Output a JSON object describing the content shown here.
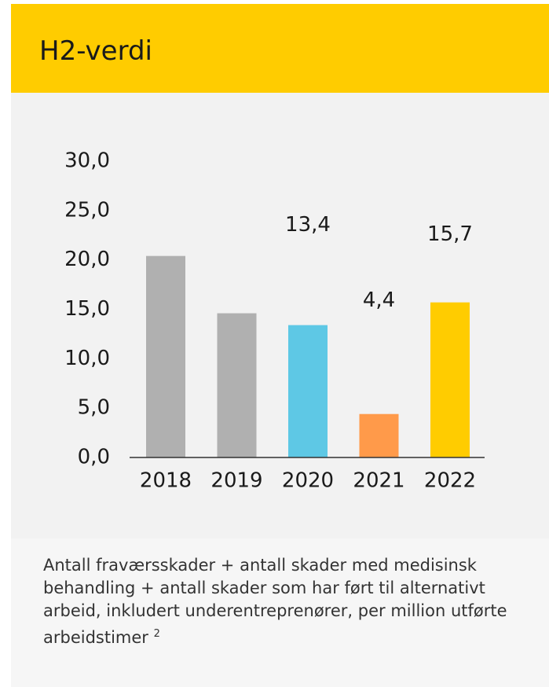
{
  "chart_data": {
    "type": "bar",
    "title": "H2-verdi",
    "categories": [
      "2018",
      "2019",
      "2020",
      "2021",
      "2022"
    ],
    "values": [
      20.4,
      14.6,
      13.4,
      4.4,
      15.7
    ],
    "value_labels": [
      null,
      null,
      "13,4",
      "4,4",
      "15,7"
    ],
    "colors": [
      "#b0b0b0",
      "#b0b0b0",
      "#5ec8e5",
      "#ff9a4a",
      "#ffcc00"
    ],
    "ylim": [
      0,
      30
    ],
    "yticks": [
      {
        "value": 0,
        "label": "0,0"
      },
      {
        "value": 5,
        "label": "5,0"
      },
      {
        "value": 10,
        "label": "10,0"
      },
      {
        "value": 15,
        "label": "15,0"
      },
      {
        "value": 20,
        "label": "20,0"
      },
      {
        "value": 25,
        "label": "25,0"
      },
      {
        "value": 30,
        "label": "30,0"
      }
    ],
    "note": "Antall fraværsskader + antall skader med medisinsk behandling + antall skader som har ført til alternativt arbeid, inkludert underentreprenører, per million utførte arbeidstimer",
    "note_ref": "2"
  }
}
